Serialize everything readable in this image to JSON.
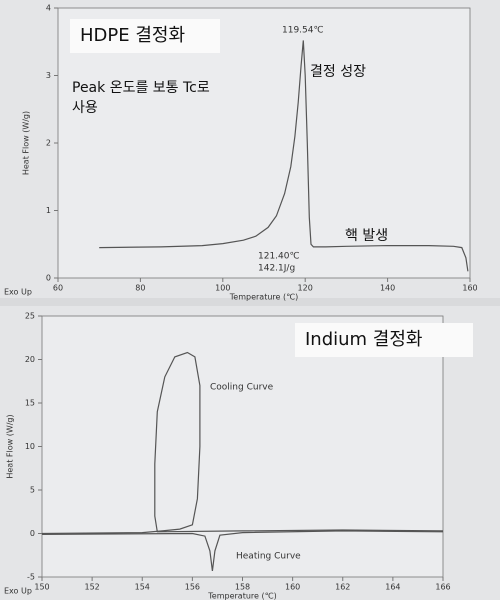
{
  "chart_data": [
    {
      "type": "line",
      "title": "HDPE 결정화",
      "x_label": "Temperature (℃)",
      "y_label": "Heat Flow (W/g)",
      "corner_label": "Exo Up",
      "annotations": [
        "119.54℃",
        "결정 성장",
        "Peak 온도를 보통 Tc로",
        "사용",
        "핵 발생",
        "121.40℃",
        "142.1J/g"
      ],
      "xlim": [
        60,
        160
      ],
      "xticks": [
        60,
        80,
        100,
        120,
        140,
        160
      ],
      "ylim": [
        0,
        4
      ],
      "yticks": [
        0,
        1,
        2,
        3,
        4
      ],
      "series": [
        {
          "color": "#555555",
          "x": [
            70,
            85,
            95,
            100,
            105,
            108,
            111,
            113,
            115,
            116.5,
            117.5,
            118.3,
            119,
            119.54,
            120,
            120.5,
            121,
            121.4,
            122,
            125,
            130,
            140,
            150,
            156,
            158,
            159,
            159.5
          ],
          "values": [
            0.45,
            0.46,
            0.48,
            0.51,
            0.56,
            0.62,
            0.75,
            0.92,
            1.25,
            1.65,
            2.1,
            2.6,
            3.15,
            3.52,
            3.0,
            2.0,
            0.9,
            0.5,
            0.46,
            0.46,
            0.47,
            0.48,
            0.48,
            0.47,
            0.45,
            0.3,
            0.1
          ]
        }
      ]
    },
    {
      "type": "line",
      "title": "Indium 결정화",
      "x_label": "Temperature (℃)",
      "y_label": "Heat Flow (W/g)",
      "corner_label": "Exo Up",
      "annotations": [
        "Cooling Curve",
        "Heating Curve"
      ],
      "xlim": [
        150,
        166
      ],
      "xticks": [
        150,
        152,
        154,
        156,
        158,
        160,
        162,
        164,
        166
      ],
      "ylim": [
        -5,
        25
      ],
      "yticks": [
        -5,
        0,
        5,
        10,
        15,
        20,
        25
      ],
      "series": [
        {
          "color": "#555555",
          "x": [
            166,
            162,
            158,
            154.6,
            154.5,
            154.5,
            154.6,
            154.9,
            155.3,
            155.8,
            156.1,
            156.3,
            156.3,
            156.2,
            156.0,
            155.5,
            154.8,
            154,
            150
          ],
          "values": [
            0.3,
            0.4,
            0.3,
            0.2,
            2,
            8,
            14,
            18,
            20.3,
            20.8,
            20.3,
            17,
            10,
            4,
            1,
            0.5,
            0.3,
            0.1,
            0
          ]
        },
        {
          "color": "#555555",
          "x": [
            150,
            156,
            156.5,
            156.7,
            156.8,
            156.9,
            157.1,
            158,
            162,
            166
          ],
          "values": [
            -0.1,
            0,
            -0.3,
            -2,
            -4.3,
            -2,
            -0.2,
            0.1,
            0.3,
            0.2
          ]
        }
      ]
    }
  ]
}
